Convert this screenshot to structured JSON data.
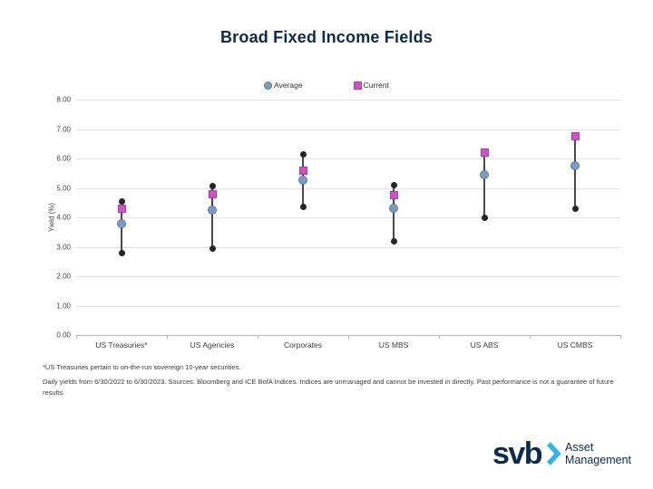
{
  "legend": {
    "average_label": "Average",
    "current_label": "Current"
  },
  "chart_data": {
    "type": "scatter",
    "subtype": "range-min-max-average-current",
    "title": "Broad Fixed Income Fields",
    "ylabel": "Yield (%)",
    "xlabel": "",
    "ylim": [
      0,
      8
    ],
    "yticks": [
      "0.00",
      "1.00",
      "2.00",
      "3.00",
      "4.00",
      "5.00",
      "6.00",
      "7.00",
      "8.00"
    ],
    "grid": "horizontal",
    "legend_position": "top-center",
    "categories": [
      "US Treasuries*",
      "US Agencies",
      "Corporates",
      "US MBS",
      "US ABS",
      "US CMBS"
    ],
    "series": [
      {
        "name": "Minimum",
        "marker": "black-dot",
        "values": [
          2.8,
          2.95,
          4.35,
          3.2,
          4.0,
          4.3
        ]
      },
      {
        "name": "Maximum",
        "marker": "black-dot",
        "values": [
          4.55,
          5.05,
          6.15,
          5.1,
          6.2,
          6.8
        ]
      },
      {
        "name": "Average",
        "marker": "blue-circle",
        "values": [
          3.8,
          4.25,
          5.25,
          4.3,
          5.45,
          5.75
        ]
      },
      {
        "name": "Current",
        "marker": "magenta-square",
        "values": [
          4.3,
          4.8,
          5.6,
          4.75,
          6.2,
          6.75
        ]
      }
    ]
  },
  "colors": {
    "title": "#0e2a4d",
    "average_fill": "#7e9bbd",
    "average_border": "#5a7c9d",
    "current_fill": "#cb53c6",
    "current_border": "#ad3fa9",
    "minmax_dot": "#262626",
    "range_line": "#4a4a4a",
    "gridline": "#e3e3e3",
    "axis_line": "#b5b5b5",
    "logo_chevron": "#2fb4e9"
  },
  "footnotes": {
    "line1": "*US Treasuries pertain to on-the-run sovereign 10-year securities.",
    "line2": "Daily yields from 6/30/2022 to 6/30/2023. Sources: Bloomberg and ICE BofA Indices. Indices are unmanaged and cannot be invested in directly. Past performance is not a guarantee of future results."
  },
  "logo": {
    "wordmark": "svb",
    "brand_line1": "Asset",
    "brand_line2": "Management"
  }
}
